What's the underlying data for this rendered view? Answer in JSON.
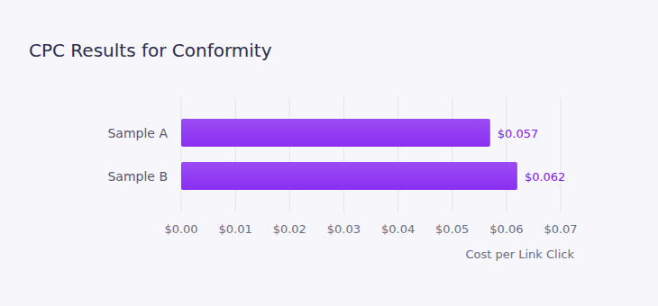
{
  "chart_data": {
    "type": "bar",
    "title": "CPC Results for Conformity",
    "orientation": "horizontal",
    "categories": [
      "Sample A",
      "Sample B"
    ],
    "values": [
      0.057,
      0.062
    ],
    "value_labels": [
      "$0.057",
      "$0.062"
    ],
    "data_labels": true,
    "color": "#8b2ef2",
    "x_label": "Cost per Link Click",
    "xlim": [
      0,
      0.07
    ],
    "xticks": [
      {
        "value": 0,
        "label": "$0.00"
      },
      {
        "value": 0.01,
        "label": "$0.01"
      },
      {
        "value": 0.02,
        "label": "$0.02"
      },
      {
        "value": 0.03,
        "label": "$0.03"
      },
      {
        "value": 0.04,
        "label": "$0.04"
      },
      {
        "value": 0.05,
        "label": "$0.05"
      },
      {
        "value": 0.06,
        "label": "$0.06"
      },
      {
        "value": 0.07,
        "label": "$0.07"
      }
    ],
    "grid": true
  }
}
